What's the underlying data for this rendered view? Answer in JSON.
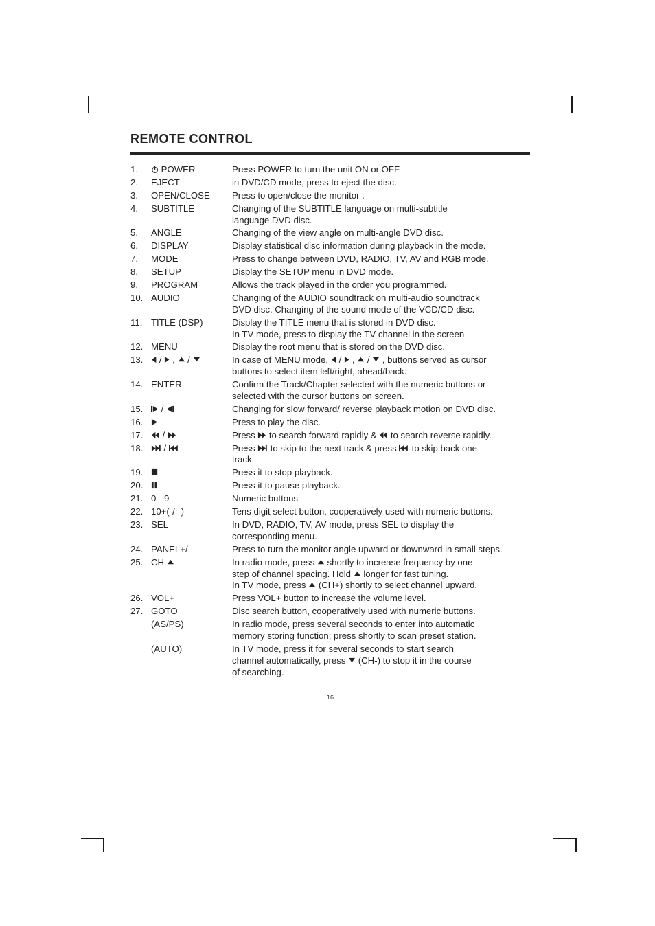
{
  "title": "REMOTE CONTROL",
  "page_number": "16",
  "rows": [
    {
      "num": "1.",
      "label_parts": [
        {
          "t": "text",
          "v": " "
        },
        {
          "t": "icon",
          "v": "power"
        },
        {
          "t": "text",
          "v": " POWER"
        }
      ],
      "desc": [
        "Press POWER to turn the unit ON or OFF."
      ]
    },
    {
      "num": "2.",
      "label_parts": [
        {
          "t": "text",
          "v": "EJECT"
        }
      ],
      "desc": [
        " in DVD/CD mode, press to eject the disc."
      ]
    },
    {
      "num": "3.",
      "label_parts": [
        {
          "t": "text",
          "v": "OPEN/CLOSE"
        }
      ],
      "desc": [
        "Press to open/close the monitor ."
      ]
    },
    {
      "num": "4.",
      "label_parts": [
        {
          "t": "text",
          "v": "SUBTITLE"
        }
      ],
      "desc": [
        "Changing of the SUBTITLE language on multi-subtitle",
        "language DVD disc."
      ]
    },
    {
      "num": "5.",
      "label_parts": [
        {
          "t": "text",
          "v": "ANGLE"
        }
      ],
      "desc": [
        "Changing of the view angle on multi-angle DVD disc."
      ]
    },
    {
      "num": "6.",
      "label_parts": [
        {
          "t": "text",
          "v": "DISPLAY"
        }
      ],
      "desc": [
        "Display statistical disc information during playback in the mode."
      ]
    },
    {
      "num": "7.",
      "label_parts": [
        {
          "t": "text",
          "v": "MODE"
        }
      ],
      "desc": [
        "Press to change between DVD, RADIO, TV,  AV and RGB mode."
      ]
    },
    {
      "num": "8.",
      "label_parts": [
        {
          "t": "text",
          "v": "SETUP"
        }
      ],
      "desc": [
        "Display the SETUP menu in DVD mode."
      ]
    },
    {
      "num": "9.",
      "label_parts": [
        {
          "t": "text",
          "v": "PROGRAM"
        }
      ],
      "desc": [
        "Allows the track played in the order you programmed."
      ]
    },
    {
      "num": "10.",
      "label_parts": [
        {
          "t": "text",
          "v": "AUDIO"
        }
      ],
      "desc": [
        "Changing of the AUDIO soundtrack on multi-audio soundtrack",
        "DVD disc. Changing of the sound mode of the VCD/CD disc."
      ]
    },
    {
      "num": "11.",
      "label_parts": [
        {
          "t": "text",
          "v": "TITLE (DSP)"
        }
      ],
      "desc": [
        "Display the TITLE menu that is stored in DVD disc.",
        "In TV mode, press to display the TV channel in the screen"
      ]
    },
    {
      "num": "12.",
      "label_parts": [
        {
          "t": "text",
          "v": "MENU"
        }
      ],
      "desc": [
        "Display the root menu that is stored on the DVD disc."
      ]
    },
    {
      "num": "13.",
      "label_parts": [
        {
          "t": "icon",
          "v": "tri-l"
        },
        {
          "t": "text",
          "v": " / "
        },
        {
          "t": "icon",
          "v": "tri-r"
        },
        {
          "t": "text",
          "v": " , "
        },
        {
          "t": "icon",
          "v": "tri-u"
        },
        {
          "t": "text",
          "v": " / "
        },
        {
          "t": "icon",
          "v": "tri-d"
        }
      ],
      "desc_parts": [
        [
          {
            "t": "text",
            "v": "In case of MENU mode, "
          },
          {
            "t": "icon",
            "v": "tri-l"
          },
          {
            "t": "text",
            "v": " / "
          },
          {
            "t": "icon",
            "v": "tri-r"
          },
          {
            "t": "text",
            "v": " , "
          },
          {
            "t": "icon",
            "v": "tri-u"
          },
          {
            "t": "text",
            "v": " / "
          },
          {
            "t": "icon",
            "v": "tri-d"
          },
          {
            "t": "text",
            "v": " , buttons served as cursor"
          }
        ],
        [
          {
            "t": "text",
            "v": "buttons to select item left/right, ahead/back."
          }
        ]
      ]
    },
    {
      "num": "14.",
      "label_parts": [
        {
          "t": "text",
          "v": "ENTER"
        }
      ],
      "desc": [
        "Confirm the Track/Chapter selected with the numeric buttons or",
        "selected with the cursor buttons on screen."
      ]
    },
    {
      "num": "15.",
      "label_parts": [
        {
          "t": "icon",
          "v": "step-fwd"
        },
        {
          "t": "text",
          "v": " / "
        },
        {
          "t": "icon",
          "v": "step-rev"
        }
      ],
      "desc": [
        "Changing for slow forward/ reverse playback motion on DVD disc."
      ]
    },
    {
      "num": "16.",
      "label_parts": [
        {
          "t": "icon",
          "v": "play"
        }
      ],
      "desc": [
        "Press to play the disc."
      ]
    },
    {
      "num": "17.",
      "label_parts": [
        {
          "t": "icon",
          "v": "rew"
        },
        {
          "t": "text",
          "v": " / "
        },
        {
          "t": "icon",
          "v": "ff"
        }
      ],
      "desc_parts": [
        [
          {
            "t": "text",
            "v": "Press "
          },
          {
            "t": "icon",
            "v": "ff"
          },
          {
            "t": "text",
            "v": " to search forward rapidly & "
          },
          {
            "t": "icon",
            "v": "rew"
          },
          {
            "t": "text",
            "v": " to search reverse rapidly."
          }
        ]
      ]
    },
    {
      "num": "18.",
      "label_parts": [
        {
          "t": "icon",
          "v": "next"
        },
        {
          "t": "text",
          "v": " / "
        },
        {
          "t": "icon",
          "v": "prev"
        }
      ],
      "desc_parts": [
        [
          {
            "t": "text",
            "v": "Press "
          },
          {
            "t": "icon",
            "v": "next"
          },
          {
            "t": "text",
            "v": " to skip to the next track & press "
          },
          {
            "t": "icon",
            "v": "prev"
          },
          {
            "t": "text",
            "v": " to skip back one"
          }
        ],
        [
          {
            "t": "text",
            "v": "track."
          }
        ]
      ]
    },
    {
      "num": "19.",
      "label_parts": [
        {
          "t": "icon",
          "v": "stop"
        }
      ],
      "desc": [
        "Press it to stop playback."
      ]
    },
    {
      "num": "20.",
      "label_parts": [
        {
          "t": "icon",
          "v": "pause"
        }
      ],
      "desc": [
        "Press it to pause playback."
      ]
    },
    {
      "num": "21.",
      "label_parts": [
        {
          "t": "text",
          "v": "0 - 9"
        }
      ],
      "desc": [
        "Numeric buttons"
      ]
    },
    {
      "num": "22.",
      "label_parts": [
        {
          "t": "text",
          "v": "10+(-/--)"
        }
      ],
      "desc": [
        "Tens digit select button, cooperatively used with numeric buttons."
      ]
    },
    {
      "num": "23.",
      "label_parts": [
        {
          "t": "text",
          "v": "SEL"
        }
      ],
      "desc": [
        "In DVD, RADIO, TV,  AV mode, press SEL to display the",
        "corresponding menu."
      ]
    },
    {
      "num": "24.",
      "label_parts": [
        {
          "t": "text",
          "v": "PANEL+/-"
        }
      ],
      "desc": [
        "Press to turn the monitor angle upward or downward in small steps."
      ]
    },
    {
      "num": "25.",
      "label_parts": [
        {
          "t": "text",
          "v": "CH "
        },
        {
          "t": "icon",
          "v": "tri-u"
        }
      ],
      "desc_parts": [
        [
          {
            "t": "text",
            "v": " In radio mode, press "
          },
          {
            "t": "icon",
            "v": "tri-u"
          },
          {
            "t": "text",
            "v": "  shortly to increase frequency by one"
          }
        ],
        [
          {
            "t": "text",
            "v": "step of channel spacing. Hold "
          },
          {
            "t": "icon",
            "v": "tri-u"
          },
          {
            "t": "text",
            "v": "  longer for fast tuning."
          }
        ],
        [
          {
            "t": "text",
            "v": "In TV mode, press "
          },
          {
            "t": "icon",
            "v": "tri-u"
          },
          {
            "t": "text",
            "v": "  (CH+) shortly to select channel upward."
          }
        ]
      ]
    },
    {
      "num": "26.",
      "label_parts": [
        {
          "t": "text",
          "v": "VOL+"
        }
      ],
      "desc": [
        " Press VOL+ button to increase the volume level."
      ]
    },
    {
      "num": "27.",
      "label_parts": [
        {
          "t": "text",
          "v": "GOTO"
        }
      ],
      "desc": [
        "Disc search button, cooperatively used with numeric buttons."
      ]
    },
    {
      "num": "",
      "label_parts": [
        {
          "t": "text",
          "v": "   (AS/PS)"
        }
      ],
      "desc": [
        "In radio mode, press several seconds to enter into automatic",
        "memory storing function; press shortly to scan preset station."
      ]
    },
    {
      "num": "",
      "label_parts": [
        {
          "t": "text",
          "v": "   (AUTO)"
        }
      ],
      "desc_parts": [
        [
          {
            "t": "text",
            "v": " In TV mode, press it for several seconds to start search"
          }
        ],
        [
          {
            "t": "text",
            "v": "channel automatically, press "
          },
          {
            "t": "icon",
            "v": "tri-d"
          },
          {
            "t": "text",
            "v": "  (CH-) to stop it in the course"
          }
        ],
        [
          {
            "t": "text",
            "v": "of searching."
          }
        ]
      ]
    }
  ]
}
